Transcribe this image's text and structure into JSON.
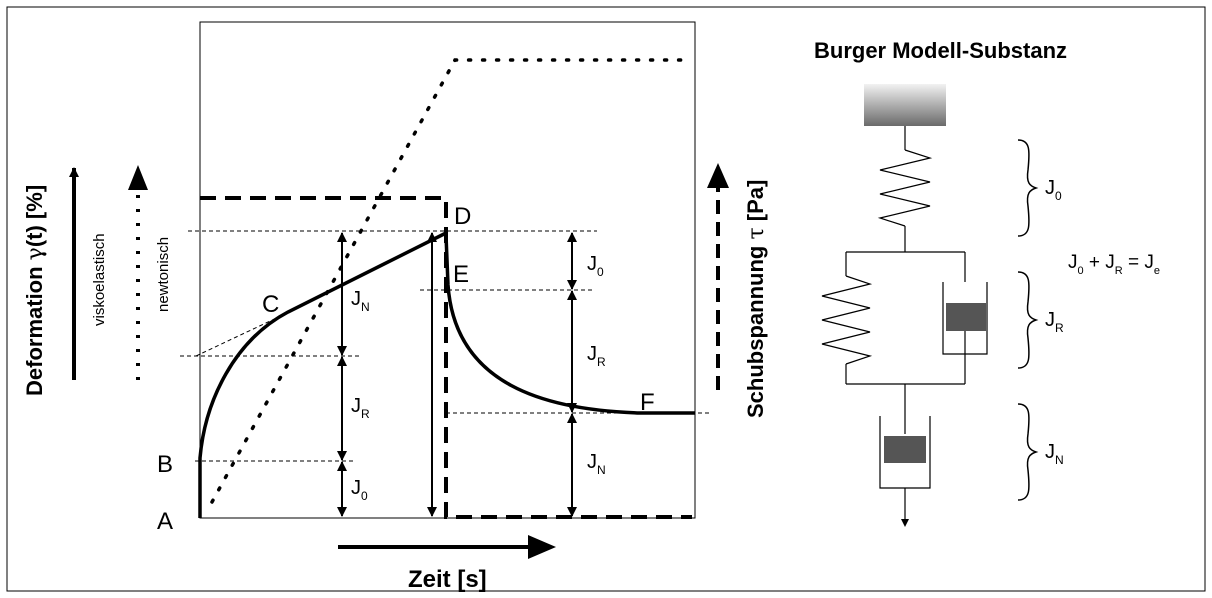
{
  "title": "Burger Modell-Substanz",
  "axes": {
    "x_label": "Zeit [s]",
    "y_left_main": "Deformation",
    "y_left_gamma": "γ",
    "y_left_rest": "(t) [%]",
    "y_right_main": "Schubspannung",
    "y_right_tau": "τ",
    "y_right_rest": "[Pa]"
  },
  "curve_labels": {
    "viskoelastisch": "viskoelastisch",
    "newtonisch": "newtonisch"
  },
  "points": [
    "A",
    "B",
    "C",
    "D",
    "E",
    "F"
  ],
  "compliance": {
    "J": "J",
    "sub_0": "0",
    "sub_R": "R",
    "sub_N": "N",
    "sub_e": "e",
    "plus": "+",
    "equals": "="
  },
  "model_labels": {
    "spring": "J",
    "kelvin": "J",
    "dashpot": "J"
  }
}
